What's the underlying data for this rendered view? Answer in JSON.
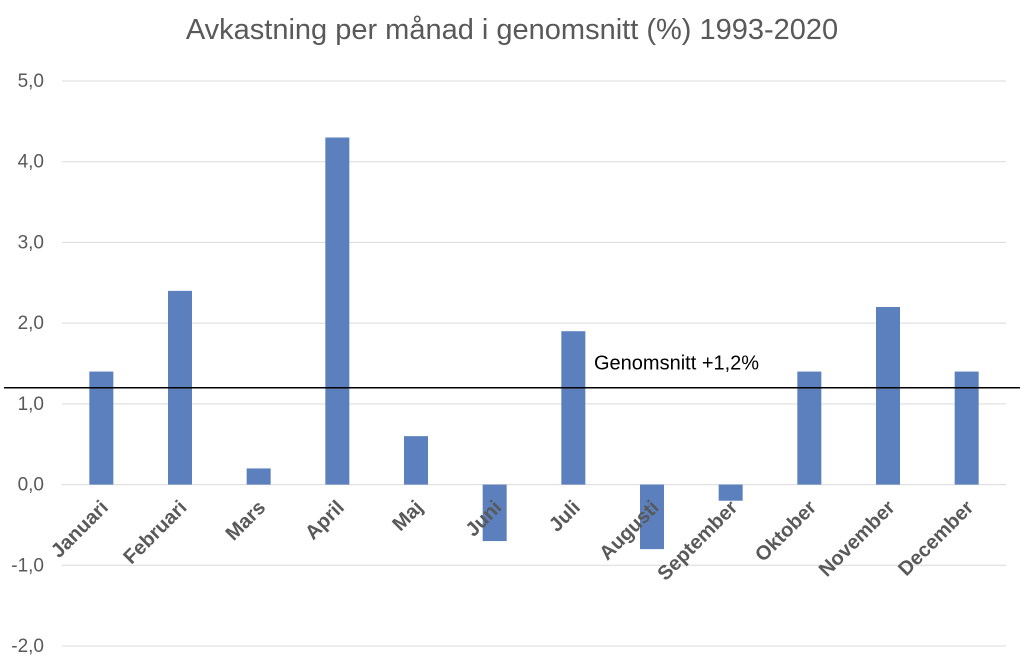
{
  "chart_data": {
    "type": "bar",
    "title": "Avkastning per månad i genomsnitt (%) 1993-2020",
    "xlabel": "",
    "ylabel": "",
    "categories": [
      "Januari",
      "Februari",
      "Mars",
      "April",
      "Maj",
      "Juni",
      "Juli",
      "Augusti",
      "September",
      "Oktober",
      "November",
      "December"
    ],
    "values": [
      1.4,
      2.4,
      0.2,
      4.3,
      0.6,
      -0.7,
      1.9,
      -0.8,
      -0.2,
      1.4,
      2.2,
      1.4
    ],
    "ylim": [
      -2.0,
      5.0
    ],
    "yticks": [
      "-2,0",
      "-1,0",
      "0,0",
      "1,0",
      "2,0",
      "3,0",
      "4,0",
      "5,0"
    ],
    "grid": true,
    "bar_color": "#5b80bd",
    "reference_line": {
      "value": 1.2,
      "label": "Genomsnitt +1,2%"
    }
  }
}
